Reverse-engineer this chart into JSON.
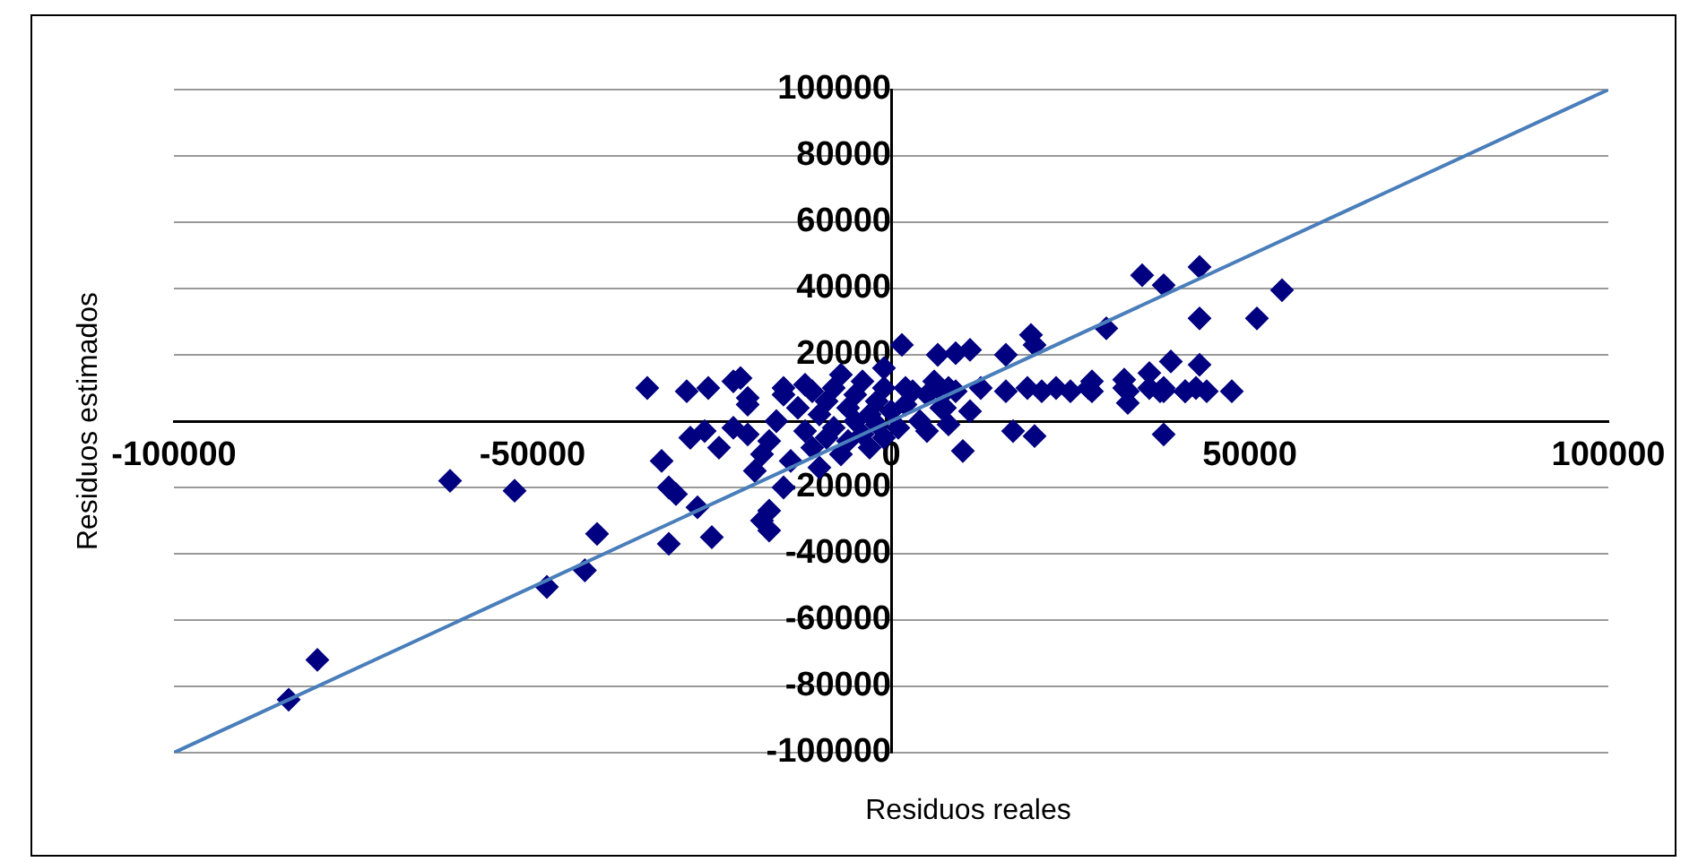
{
  "chart_data": {
    "type": "scatter",
    "xlabel": "Residuos reales",
    "ylabel": "Residuos estimados",
    "xlim": [
      -100000,
      100000
    ],
    "xticks": [
      -100000,
      -50000,
      0,
      50000,
      100000
    ],
    "ylim": [
      -100000,
      100000
    ],
    "yticks": [
      -100000,
      -80000,
      -60000,
      -40000,
      -20000,
      0,
      20000,
      40000,
      60000,
      80000,
      100000
    ],
    "grid": "y",
    "legend": false,
    "marker": "diamond",
    "series": [
      {
        "color": "#000080",
        "x": [
          -84000,
          -80000,
          -61500,
          -52500,
          -48000,
          -42700,
          -41000,
          -34000,
          -28500,
          -25500,
          -32000,
          -31000,
          -30000,
          -31000,
          -27000,
          -25000,
          -18000,
          -17000,
          -17000,
          -28000,
          -26000,
          -24000,
          -22000,
          -22000,
          -20000,
          -20000,
          -19000,
          -18000,
          -17000,
          -16000,
          -15000,
          -15000,
          -14000,
          -13000,
          -12000,
          -12000,
          -11000,
          -10000,
          -10000,
          -9000,
          -9000,
          -8000,
          -8000,
          -7000,
          -7000,
          -6000,
          -6000,
          -5000,
          -5000,
          -4000,
          -4000,
          -3000,
          -3000,
          -2000,
          -2000,
          -1000,
          -1000,
          -1000,
          0,
          -21000,
          -15000,
          -11000,
          -20000,
          1000,
          2000,
          2000,
          4000,
          5000,
          5000,
          6000,
          7000,
          8000,
          8000,
          3000,
          6500,
          9000,
          12500,
          16000,
          19000,
          21000,
          23000,
          25000,
          27500,
          28000,
          32500,
          33000,
          36000,
          37500,
          38000,
          41000,
          42500,
          44000,
          47500,
          1500,
          6500,
          9000,
          11000,
          16000,
          19500,
          20000,
          30000,
          33000,
          38000,
          38000,
          17000,
          20000,
          10000,
          11000,
          7500,
          43000,
          51000,
          54500,
          35000,
          38000,
          43000,
          43000,
          39000,
          36000,
          41000,
          32500,
          28000
        ],
        "values": [
          -84000,
          -72000,
          -18000,
          -21000,
          -50000,
          -45000,
          -34000,
          10000,
          9000,
          10000,
          -12000,
          -20000,
          -22000,
          -37000,
          -26000,
          -35000,
          -30000,
          -27000,
          -33000,
          -5000,
          -3000,
          -8000,
          -2000,
          12000,
          -4000,
          5000,
          -15000,
          -10000,
          -6000,
          0,
          8000,
          -20000,
          -12000,
          4000,
          -3000,
          11000,
          -8000,
          2000,
          -14000,
          6000,
          -5000,
          10000,
          -2000,
          -10000,
          14000,
          4000,
          -6000,
          0,
          8000,
          -4000,
          12000,
          2000,
          -8000,
          6000,
          -1000,
          16000,
          10000,
          -5000,
          3000,
          13000,
          10000,
          9000,
          7000,
          -2000,
          5000,
          10000,
          0,
          8000,
          -3000,
          12000,
          4000,
          10000,
          -1000,
          9000,
          10000,
          9000,
          10000,
          9000,
          10000,
          9000,
          10000,
          9000,
          10000,
          9000,
          10000,
          9000,
          10000,
          9000,
          10000,
          9000,
          10000,
          9000,
          9000,
          23000,
          20000,
          20500,
          21500,
          20000,
          26000,
          23000,
          28000,
          5500,
          9000,
          -4000,
          -3000,
          -4500,
          -9000,
          3000,
          4000,
          31000,
          31000,
          39500,
          44000,
          41000,
          46500,
          17000,
          18000,
          14500,
          9000,
          12500,
          12000
        ]
      },
      {
        "type": "line",
        "color": "#4a7ebb",
        "marker": "none",
        "x": [
          -100000,
          100000
        ],
        "values": [
          -100000,
          100000
        ]
      }
    ]
  }
}
